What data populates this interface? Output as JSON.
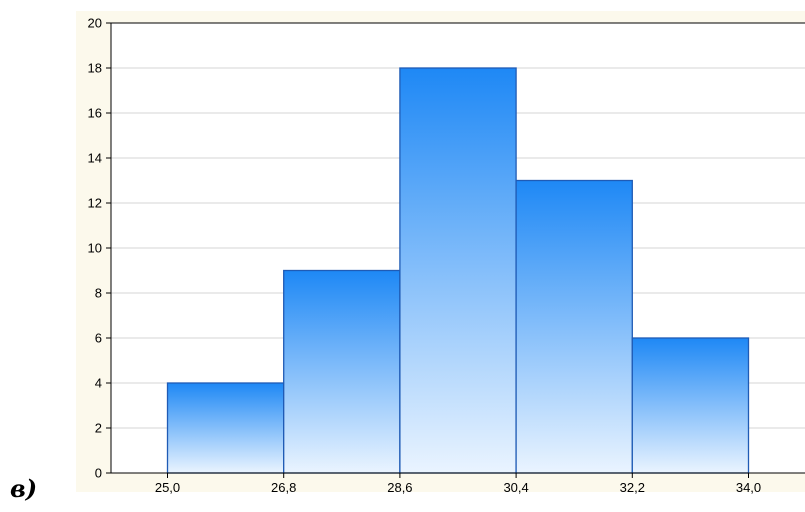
{
  "panel_label": "в)",
  "chart_data": {
    "type": "bar",
    "title": "",
    "xlabel": "",
    "ylabel": "",
    "x_tick_labels": [
      "25,0",
      "26,8",
      "28,6",
      "30,4",
      "32,2",
      "34,0"
    ],
    "bins": [
      {
        "from": 25.0,
        "to": 26.8,
        "value": 4
      },
      {
        "from": 26.8,
        "to": 28.6,
        "value": 9
      },
      {
        "from": 28.6,
        "to": 30.4,
        "value": 18
      },
      {
        "from": 30.4,
        "to": 32.2,
        "value": 13
      },
      {
        "from": 32.2,
        "to": 34.0,
        "value": 6
      }
    ],
    "ylim": [
      0,
      20
    ],
    "y_ticks": [
      0,
      2,
      4,
      6,
      8,
      10,
      12,
      14,
      16,
      18,
      20
    ],
    "grid": true,
    "legend": "none",
    "bar_gradient_top": "#1e88f5",
    "bar_gradient_bottom": "#eaf4ff",
    "bar_edge_color": "#1f5bb5",
    "background_color": "#fcf9ec"
  }
}
